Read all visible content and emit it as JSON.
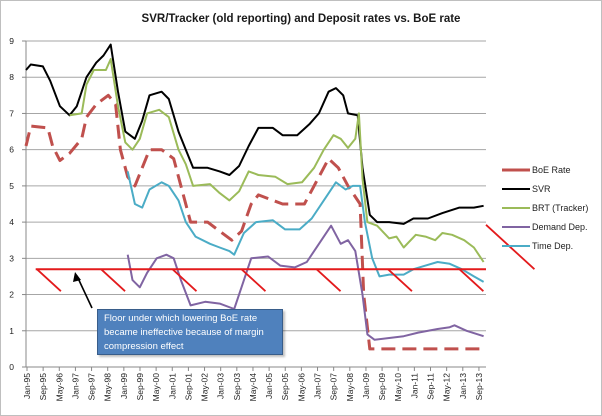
{
  "chart_data": {
    "type": "line",
    "title": "SVR/Tracker (old reporting) and Deposit rates vs. BoE rate",
    "xlabel": "",
    "ylabel": "",
    "ylim": [
      0,
      9
    ],
    "yticks": [
      "0",
      "1",
      "2",
      "3",
      "4",
      "5",
      "6",
      "7",
      "8",
      "9"
    ],
    "xlim": [
      1995.0,
      2014.0
    ],
    "grid": true,
    "legend_position": "right",
    "x_tick_labels": [
      "Jan-95",
      "Sep-95",
      "May-96",
      "Jan-97",
      "Sep-97",
      "May-98",
      "Jan-99",
      "Sep-99",
      "May-00",
      "Jan-01",
      "Sep-01",
      "May-02",
      "Jan-03",
      "Sep-03",
      "May-04",
      "Jan-05",
      "Sep-05",
      "May-06",
      "Jan-07",
      "Sep-07",
      "May-08",
      "Jan-09",
      "Sep-09",
      "May-10",
      "Jan-11",
      "Sep-11",
      "May-12",
      "Jan-13",
      "Sep-13"
    ],
    "series": [
      {
        "name": "BoE Rate",
        "color": "#c0504d",
        "style": "dashed",
        "x": [
          1995.0,
          1995.2,
          1995.9,
          1996.1,
          1996.4,
          1996.8,
          1997.3,
          1997.5,
          1997.9,
          1998.4,
          1998.7,
          1998.9,
          1999.2,
          1999.5,
          1999.8,
          2000.1,
          2000.6,
          2001.1,
          2001.4,
          2001.8,
          2002.5,
          2003.0,
          2003.5,
          2003.9,
          2004.3,
          2004.6,
          2005.6,
          2006.5,
          2006.9,
          2007.5,
          2007.9,
          2008.3,
          2008.8,
          2008.95,
          2009.2,
          2013.9
        ],
        "y": [
          6.1,
          6.65,
          6.6,
          6.1,
          5.7,
          5.9,
          6.3,
          6.9,
          7.25,
          7.5,
          7.25,
          6.0,
          5.25,
          5.0,
          5.5,
          6.0,
          6.0,
          5.75,
          5.0,
          4.0,
          4.0,
          3.75,
          3.5,
          3.75,
          4.5,
          4.75,
          4.5,
          4.5,
          5.0,
          5.75,
          5.5,
          5.0,
          4.5,
          2.0,
          0.5,
          0.5
        ]
      },
      {
        "name": "SVR",
        "color": "#000000",
        "style": "solid",
        "x": [
          1995.0,
          1995.2,
          1995.7,
          1996.0,
          1996.4,
          1996.8,
          1997.1,
          1997.5,
          1997.9,
          1998.2,
          1998.5,
          1998.8,
          1999.1,
          1999.5,
          1999.8,
          2000.1,
          2000.6,
          2000.9,
          2001.3,
          2001.6,
          2001.9,
          2002.5,
          2003.0,
          2003.4,
          2003.8,
          2004.2,
          2004.6,
          2005.2,
          2005.6,
          2006.2,
          2006.7,
          2007.1,
          2007.5,
          2007.8,
          2008.1,
          2008.3,
          2008.7,
          2008.9,
          2009.2,
          2009.5,
          2010.0,
          2010.6,
          2011.0,
          2011.6,
          2012.2,
          2012.9,
          2013.5,
          2013.9
        ],
        "y": [
          8.2,
          8.35,
          8.3,
          7.9,
          7.2,
          6.95,
          7.2,
          8.0,
          8.4,
          8.6,
          8.9,
          7.6,
          6.5,
          6.3,
          6.8,
          7.5,
          7.6,
          7.4,
          6.5,
          6.0,
          5.5,
          5.5,
          5.4,
          5.3,
          5.55,
          6.1,
          6.6,
          6.6,
          6.4,
          6.4,
          6.7,
          7.0,
          7.6,
          7.7,
          7.5,
          7.0,
          6.95,
          5.5,
          4.2,
          4.0,
          4.0,
          3.95,
          4.1,
          4.1,
          4.25,
          4.4,
          4.4,
          4.45
        ]
      },
      {
        "name": "BRT (Tracker)",
        "color": "#9bbb59",
        "style": "solid",
        "x": [
          1996.8,
          1997.3,
          1997.5,
          1997.8,
          1998.3,
          1998.5,
          1998.8,
          1999.1,
          1999.4,
          1999.7,
          2000.0,
          2000.5,
          2000.9,
          2001.3,
          2001.6,
          2001.9,
          2002.6,
          2003.0,
          2003.4,
          2003.8,
          2004.2,
          2004.6,
          2005.3,
          2005.8,
          2006.4,
          2006.9,
          2007.3,
          2007.7,
          2008.0,
          2008.3,
          2008.6,
          2008.75,
          2008.9,
          2009.1,
          2009.5,
          2010.0,
          2010.3,
          2010.6,
          2011.1,
          2011.5,
          2011.9,
          2012.2,
          2012.6,
          2013.1,
          2013.5,
          2013.9
        ],
        "y": [
          6.95,
          7.0,
          7.8,
          8.2,
          8.2,
          8.5,
          7.2,
          6.2,
          6.0,
          6.3,
          7.0,
          7.1,
          6.9,
          6.0,
          5.6,
          5.0,
          5.05,
          4.8,
          4.6,
          4.85,
          5.4,
          5.3,
          5.25,
          5.05,
          5.1,
          5.5,
          6.0,
          6.4,
          6.3,
          6.05,
          6.3,
          7.0,
          5.2,
          4.0,
          3.9,
          3.55,
          3.6,
          3.3,
          3.65,
          3.6,
          3.5,
          3.7,
          3.65,
          3.5,
          3.3,
          2.9
        ]
      },
      {
        "name": "Demand Dep.",
        "color": "#8064a2",
        "style": "solid",
        "x": [
          1999.2,
          1999.4,
          1999.7,
          2000.0,
          2000.4,
          2000.8,
          2001.1,
          2001.4,
          2001.8,
          2002.4,
          2003.0,
          2003.6,
          2003.9,
          2004.3,
          2005.0,
          2005.5,
          2006.1,
          2006.6,
          2007.2,
          2007.6,
          2008.0,
          2008.3,
          2008.6,
          2008.9,
          2009.1,
          2009.4,
          2010.0,
          2010.6,
          2011.2,
          2012.0,
          2012.5,
          2012.7,
          2013.2,
          2013.9
        ],
        "y": [
          3.1,
          2.4,
          2.2,
          2.6,
          3.0,
          3.1,
          3.0,
          2.4,
          1.7,
          1.8,
          1.75,
          1.6,
          2.2,
          3.0,
          3.05,
          2.8,
          2.75,
          2.9,
          3.5,
          3.9,
          3.4,
          3.5,
          3.2,
          2.0,
          0.9,
          0.75,
          0.8,
          0.85,
          0.95,
          1.05,
          1.1,
          1.15,
          1.0,
          0.85
        ]
      },
      {
        "name": "Time Dep.",
        "color": "#4bacc6",
        "style": "solid",
        "x": [
          1999.2,
          1999.5,
          1999.8,
          2000.1,
          2000.6,
          2000.9,
          2001.3,
          2001.6,
          2002.0,
          2002.6,
          2003.0,
          2003.4,
          2003.6,
          2004.0,
          2004.5,
          2005.2,
          2005.7,
          2006.3,
          2006.8,
          2007.3,
          2007.8,
          2008.2,
          2008.5,
          2008.8,
          2009.0,
          2009.3,
          2009.6,
          2010.0,
          2010.6,
          2011.0,
          2011.5,
          2012.0,
          2012.5,
          2013.0,
          2013.5,
          2013.9
        ],
        "y": [
          5.4,
          4.5,
          4.4,
          4.9,
          5.1,
          5.0,
          4.6,
          4.0,
          3.6,
          3.4,
          3.3,
          3.2,
          3.1,
          3.7,
          4.0,
          4.05,
          3.8,
          3.8,
          4.1,
          4.6,
          5.1,
          4.9,
          5.0,
          5.0,
          4.0,
          3.0,
          2.5,
          2.55,
          2.55,
          2.7,
          2.8,
          2.9,
          2.85,
          2.7,
          2.5,
          2.35
        ]
      }
    ],
    "annotations": {
      "floor_level": 2.7,
      "floor_color": "#e31a1c",
      "floor_x": [
        1995.4,
        2014.0
      ],
      "hatch_x": [
        1995.45,
        1998.1,
        2001.05,
        2003.9,
        2007.0,
        2009.95,
        2012.9,
        2016.0
      ],
      "text": "Floor under which lowering BoE rate became ineffective because of margin compression effect",
      "box_color": "#4f81bd"
    }
  }
}
